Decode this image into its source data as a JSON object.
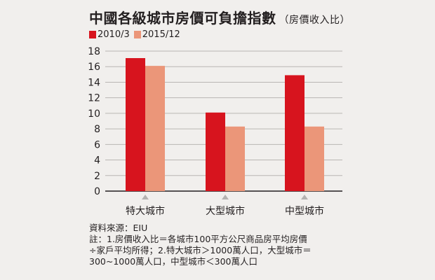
{
  "title": "中國各級城市房價可負擔指數",
  "subtitle": "（房價收入比）",
  "colors": {
    "series1": "#d7141e",
    "series2": "#eb9679",
    "grid": "#b9b6b3",
    "axis": "#231f20",
    "marker": "#b4b2b0"
  },
  "chart_data": {
    "type": "bar",
    "categories": [
      "特大城市",
      "大型城市",
      "中型城市"
    ],
    "series": [
      {
        "name": "2010/3",
        "values": [
          17.1,
          10.1,
          14.9
        ]
      },
      {
        "name": "2015/12",
        "values": [
          16.1,
          8.3,
          8.3
        ]
      }
    ],
    "ylim": [
      0,
      18
    ],
    "yticks": [
      "0",
      "2",
      "4",
      "6",
      "8",
      "10",
      "12",
      "14",
      "16",
      "18"
    ],
    "grid": true,
    "legend_position": "top-left"
  },
  "notes": {
    "source": "資料來源：EIU",
    "note_lines": [
      "註：1.房價收入比＝各城市100平方公尺商品房平均房價",
      "÷家戶平均所得；2.特大城市＞1000萬人口，大型城市＝",
      "300~1000萬人口，中型城市＜300萬人口"
    ]
  }
}
